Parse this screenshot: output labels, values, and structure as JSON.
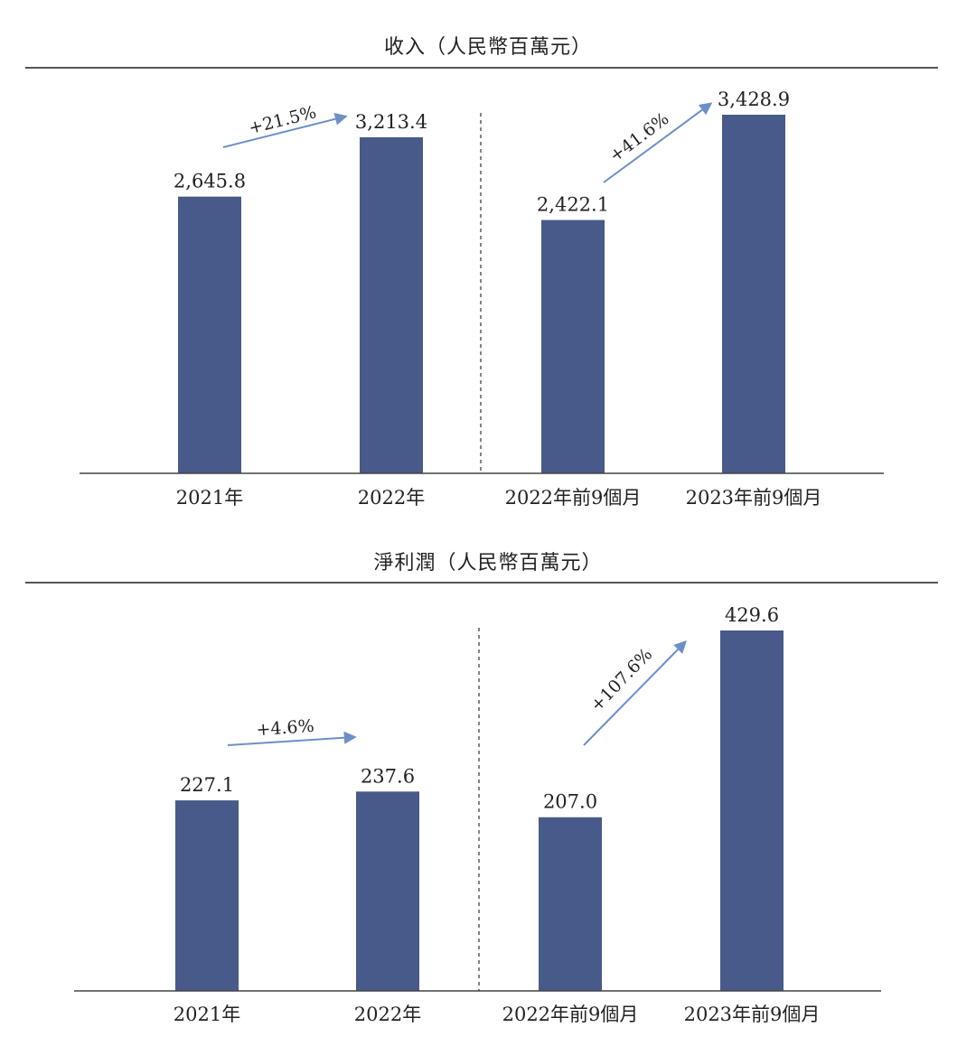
{
  "chart_data": [
    {
      "type": "bar",
      "title": "收入（人民幣百萬元）",
      "categories": [
        "2021年",
        "2022年",
        "2022年前9個月",
        "2023年前9個月"
      ],
      "values": [
        2645.8,
        3213.4,
        2422.1,
        3428.9
      ],
      "value_labels": [
        "2,645.8",
        "3,213.4",
        "2,422.1",
        "3,428.9"
      ],
      "growth_annotations": [
        {
          "from": "2021年",
          "to": "2022年",
          "label": "+21.5%"
        },
        {
          "from": "2022年前9個月",
          "to": "2023年前9個月",
          "label": "+41.6%"
        }
      ],
      "divider": "dashed line between 2022年 and 2022年前9個月",
      "colors": {
        "bar": "#475a8a",
        "arrow": "#6c8fc6",
        "axis": "#444444"
      },
      "grid": false
    },
    {
      "type": "bar",
      "title": "淨利潤（人民幣百萬元）",
      "categories": [
        "2021年",
        "2022年",
        "2022年前9個月",
        "2023年前9個月"
      ],
      "values": [
        227.1,
        237.6,
        207.0,
        429.6
      ],
      "value_labels": [
        "227.1",
        "237.6",
        "207.0",
        "429.6"
      ],
      "growth_annotations": [
        {
          "from": "2021年",
          "to": "2022年",
          "label": "+4.6%"
        },
        {
          "from": "2022年前9個月",
          "to": "2023年前9個月",
          "label": "+107.6%"
        }
      ],
      "divider": "dashed line between 2022年 and 2022年前9個月",
      "colors": {
        "bar": "#475a8a",
        "arrow": "#6c8fc6",
        "axis": "#444444"
      },
      "grid": false
    }
  ]
}
